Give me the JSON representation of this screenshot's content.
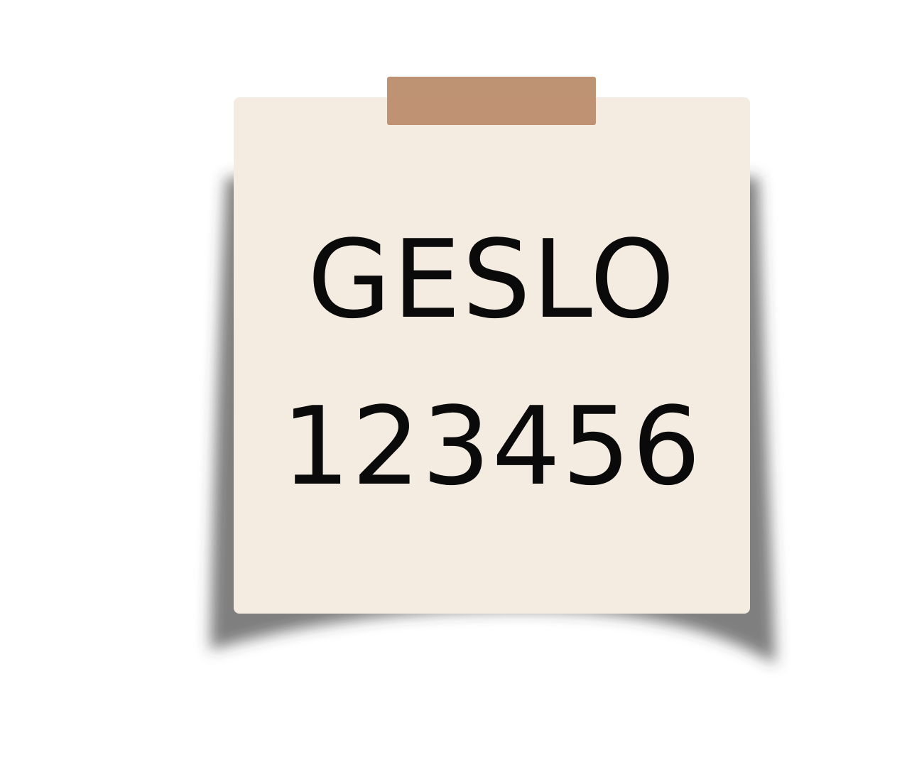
{
  "note": {
    "line1": "GESLO",
    "line2": "123456"
  },
  "colors": {
    "background": "#ffffff",
    "paper": "#f4ece0",
    "tape": "#b98a68",
    "text": "#0a0a0a",
    "shadow": "#3c3c3c"
  }
}
